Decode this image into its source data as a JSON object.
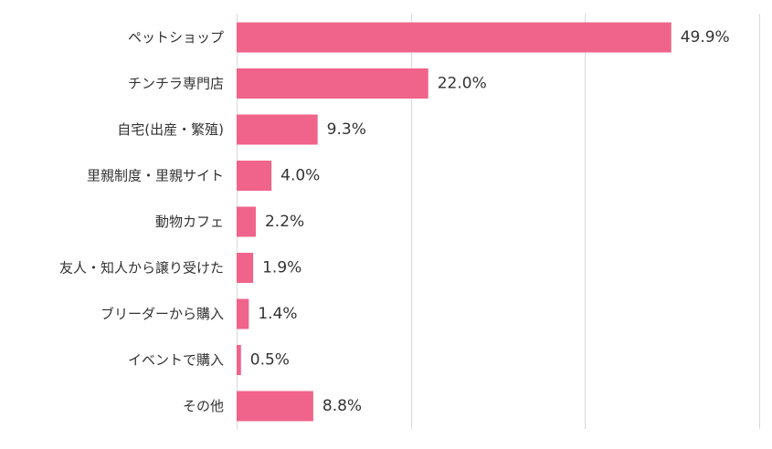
{
  "chart_data": {
    "type": "bar",
    "orientation": "horizontal",
    "categories": [
      "ペットショップ",
      "チンチラ専門店",
      "自宅(出産・繁殖)",
      "里親制度・里親サイト",
      "動物カフェ",
      "友人・知人から譲り受けた",
      "ブリーダーから購入",
      "イベントで購入",
      "その他"
    ],
    "values": [
      49.9,
      22.0,
      9.3,
      4.0,
      2.2,
      1.9,
      1.4,
      0.5,
      8.8
    ],
    "value_labels": [
      "49.9%",
      "22.0%",
      "9.3%",
      "4.0%",
      "2.2%",
      "1.9%",
      "1.4%",
      "0.5%",
      "8.8%"
    ],
    "xlim": [
      0,
      60
    ],
    "gridlines": [
      0,
      20,
      40,
      60
    ],
    "grid": true,
    "bar_color": "#f0638a",
    "title": "",
    "xlabel": "",
    "ylabel": ""
  }
}
